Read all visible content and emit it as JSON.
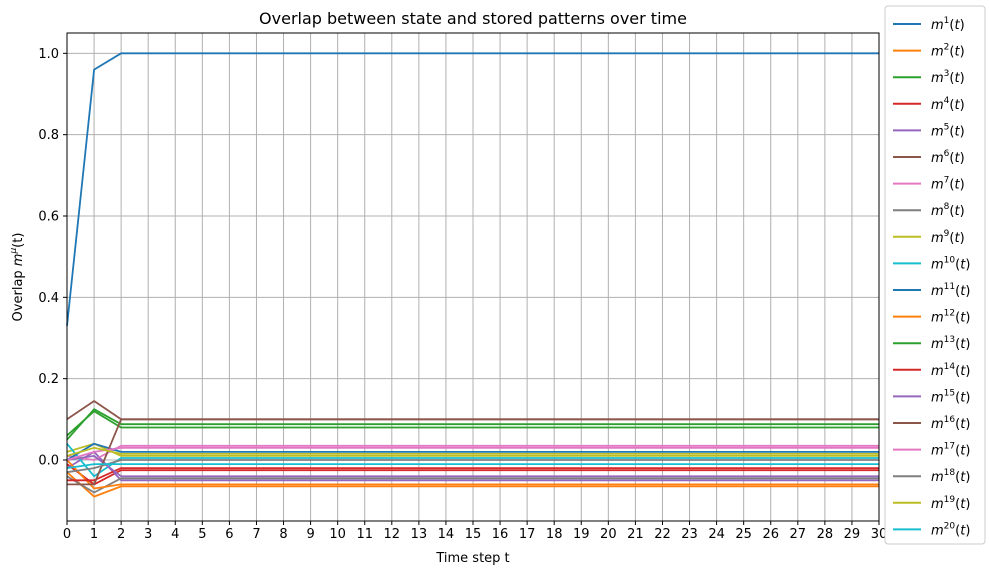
{
  "chart_data": {
    "type": "line",
    "title": "Overlap between state and stored patterns over time",
    "xlabel": "Time step t",
    "ylabel_prefix": "Overlap ",
    "ylabel_symbol": "m",
    "ylabel_sup": "μ",
    "ylabel_suffix": "(t)",
    "xlim": [
      0,
      30
    ],
    "ylim": [
      -0.15,
      1.05
    ],
    "xticks": [
      "0",
      "1",
      "2",
      "3",
      "4",
      "5",
      "6",
      "7",
      "8",
      "9",
      "10",
      "11",
      "12",
      "13",
      "14",
      "15",
      "16",
      "17",
      "18",
      "19",
      "20",
      "21",
      "22",
      "23",
      "24",
      "25",
      "26",
      "27",
      "28",
      "29",
      "30"
    ],
    "yticks": [
      "0.0",
      "0.2",
      "0.4",
      "0.6",
      "0.8",
      "1.0"
    ],
    "ytick_values": [
      0.0,
      0.2,
      0.4,
      0.6,
      0.8,
      1.0
    ],
    "grid": true,
    "legend_position": "outside-right",
    "x": [
      0,
      1,
      2,
      3,
      4,
      5,
      6,
      7,
      8,
      9,
      10,
      11,
      12,
      13,
      14,
      15,
      16,
      17,
      18,
      19,
      20,
      21,
      22,
      23,
      24,
      25,
      26,
      27,
      28,
      29,
      30
    ],
    "series": [
      {
        "name": "m",
        "sup": "1",
        "color": "#1f77b4",
        "start": [
          0.33,
          0.96
        ],
        "steady": 1.0
      },
      {
        "name": "m",
        "sup": "2",
        "color": "#ff7f0e",
        "start": [
          -0.03,
          -0.09
        ],
        "steady": -0.065
      },
      {
        "name": "m",
        "sup": "3",
        "color": "#2ca02c",
        "start": [
          0.05,
          0.125
        ],
        "steady": 0.088
      },
      {
        "name": "m",
        "sup": "4",
        "color": "#d62728",
        "start": [
          -0.01,
          -0.06
        ],
        "steady": -0.025
      },
      {
        "name": "m",
        "sup": "5",
        "color": "#9467bd",
        "start": [
          -0.02,
          0.02
        ],
        "steady": -0.05
      },
      {
        "name": "m",
        "sup": "6",
        "color": "#8c564b",
        "start": [
          0.1,
          0.145
        ],
        "steady": 0.1
      },
      {
        "name": "m",
        "sup": "7",
        "color": "#e377c2",
        "start": [
          0.01,
          0.0
        ],
        "steady": 0.035
      },
      {
        "name": "m",
        "sup": "8",
        "color": "#7f7f7f",
        "start": [
          -0.04,
          -0.08
        ],
        "steady": -0.045
      },
      {
        "name": "m",
        "sup": "9",
        "color": "#bcbd22",
        "start": [
          0.02,
          0.04
        ],
        "steady": 0.01
      },
      {
        "name": "m",
        "sup": "10",
        "color": "#17becf",
        "start": [
          0.04,
          -0.04
        ],
        "steady": 0.005
      },
      {
        "name": "m",
        "sup": "11",
        "color": "#1f77b4",
        "start": [
          0.0,
          0.04
        ],
        "steady": 0.02
      },
      {
        "name": "m",
        "sup": "12",
        "color": "#ff7f0e",
        "start": [
          0.0,
          -0.07
        ],
        "steady": -0.06
      },
      {
        "name": "m",
        "sup": "13",
        "color": "#2ca02c",
        "start": [
          0.06,
          0.12
        ],
        "steady": 0.08
      },
      {
        "name": "m",
        "sup": "14",
        "color": "#d62728",
        "start": [
          -0.05,
          -0.05
        ],
        "steady": -0.02
      },
      {
        "name": "m",
        "sup": "15",
        "color": "#9467bd",
        "start": [
          0.0,
          0.01
        ],
        "steady": -0.04
      },
      {
        "name": "m",
        "sup": "16",
        "color": "#8c564b",
        "start": [
          -0.06,
          -0.06
        ],
        "steady": 0.1
      },
      {
        "name": "m",
        "sup": "17",
        "color": "#e377c2",
        "start": [
          0.0,
          0.02
        ],
        "steady": 0.03
      },
      {
        "name": "m",
        "sup": "18",
        "color": "#7f7f7f",
        "start": [
          -0.03,
          -0.02
        ],
        "steady": 0.0
      },
      {
        "name": "m",
        "sup": "19",
        "color": "#bcbd22",
        "start": [
          0.01,
          0.03
        ],
        "steady": 0.015
      },
      {
        "name": "m",
        "sup": "20",
        "color": "#17becf",
        "start": [
          -0.02,
          -0.01
        ],
        "steady": -0.01
      }
    ]
  }
}
